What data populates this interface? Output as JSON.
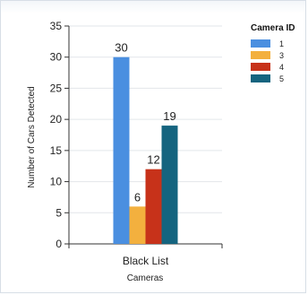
{
  "chart_data": {
    "type": "bar",
    "categories": [
      "Black List"
    ],
    "series": [
      {
        "name": "1",
        "values": [
          30
        ],
        "color": "#4a8fe0"
      },
      {
        "name": "3",
        "values": [
          6
        ],
        "color": "#f3b03e"
      },
      {
        "name": "4",
        "values": [
          12
        ],
        "color": "#c7321a"
      },
      {
        "name": "5",
        "values": [
          19
        ],
        "color": "#15647f"
      }
    ],
    "xlabel": "Cameras",
    "ylabel": "Number of Cars Detected",
    "ylim": [
      0,
      35
    ],
    "yticks": [
      0,
      5,
      10,
      15,
      20,
      25,
      30,
      35
    ],
    "legend_title": "Camera ID",
    "legend_position": "top-right",
    "grid": true
  }
}
